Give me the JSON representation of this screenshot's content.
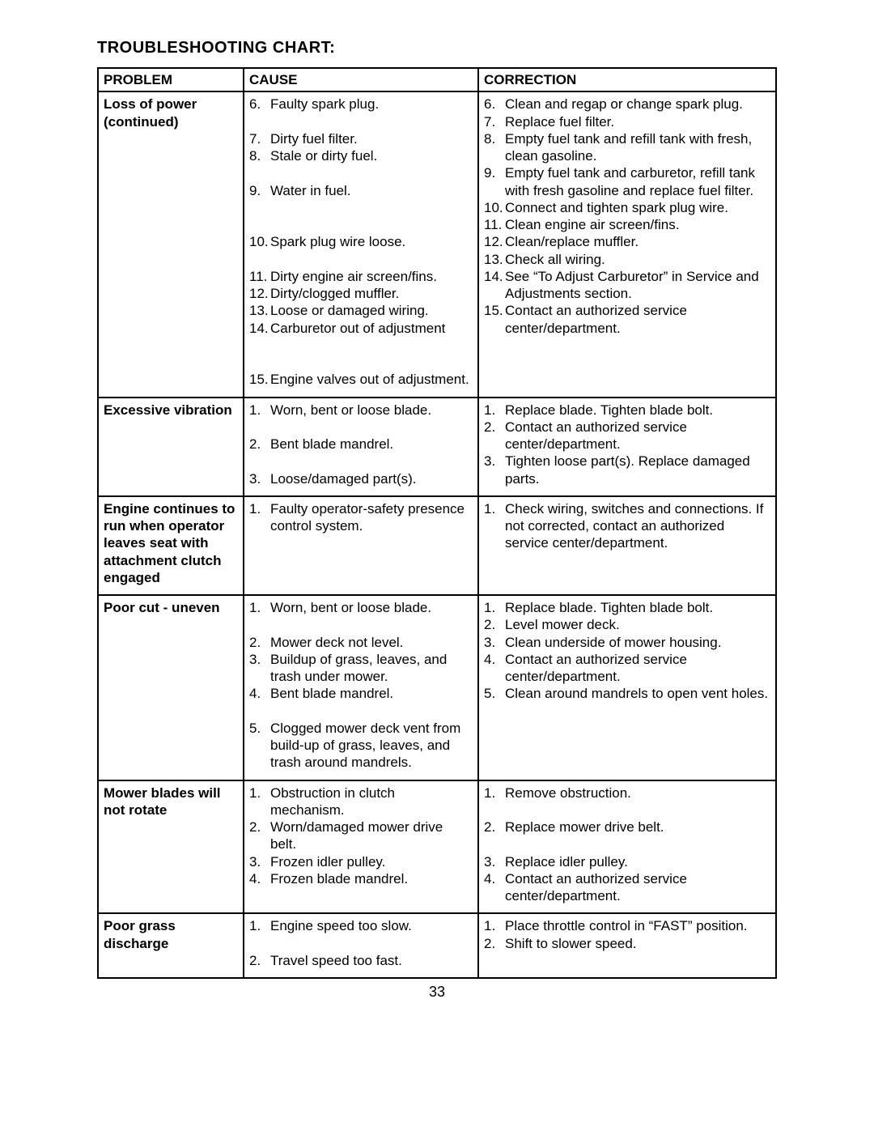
{
  "title": "TROUBLESHOOTING CHART:",
  "headers": {
    "problem": "PROBLEM",
    "cause": "CAUSE",
    "correction": "CORRECTION"
  },
  "page_number": "33",
  "rows": [
    {
      "problem": "Loss of power (continued)",
      "causes": [
        {
          "n": "6.",
          "t": "Faulty spark plug."
        },
        {
          "n": " ",
          "t": " "
        },
        {
          "n": "7.",
          "t": "Dirty fuel filter."
        },
        {
          "n": "8.",
          "t": "Stale or dirty fuel."
        },
        {
          "n": " ",
          "t": " "
        },
        {
          "n": "9.",
          "t": "Water in fuel."
        },
        {
          "n": " ",
          "t": " "
        },
        {
          "n": " ",
          "t": " "
        },
        {
          "n": "10.",
          "t": "Spark plug wire loose."
        },
        {
          "n": " ",
          "t": " "
        },
        {
          "n": "11.",
          "t": "Dirty engine air screen/fins."
        },
        {
          "n": "12.",
          "t": "Dirty/clogged muffler."
        },
        {
          "n": "13.",
          "t": "Loose or damaged wiring."
        },
        {
          "n": "14.",
          "t": "Carburetor out of adjustment"
        },
        {
          "n": " ",
          "t": " "
        },
        {
          "n": " ",
          "t": " "
        },
        {
          "n": "15.",
          "t": "Engine valves out of adjustment."
        }
      ],
      "corrections": [
        {
          "n": "6.",
          "t": "Clean and regap or change spark plug."
        },
        {
          "n": "7.",
          "t": "Replace fuel filter."
        },
        {
          "n": "8.",
          "t": "Empty fuel tank and refill tank with fresh, clean gasoline."
        },
        {
          "n": "9.",
          "t": "Empty fuel tank and carburetor, refill tank with fresh gasoline and replace fuel filter."
        },
        {
          "n": "10.",
          "t": "Connect and tighten spark plug wire."
        },
        {
          "n": "11.",
          "t": "Clean engine air screen/fins."
        },
        {
          "n": "12.",
          "t": "Clean/replace muffler."
        },
        {
          "n": "13.",
          "t": "Check all wiring."
        },
        {
          "n": "14.",
          "t": "See “To Adjust Carburetor” in Service and Adjustments section."
        },
        {
          "n": "15.",
          "t": "Contact an authorized service center/department."
        }
      ]
    },
    {
      "problem": "Excessive vibration",
      "causes": [
        {
          "n": "1.",
          "t": "Worn, bent or loose blade."
        },
        {
          "n": " ",
          "t": " "
        },
        {
          "n": "2.",
          "t": "Bent blade mandrel."
        },
        {
          "n": " ",
          "t": " "
        },
        {
          "n": "3.",
          "t": "Loose/damaged part(s)."
        }
      ],
      "corrections": [
        {
          "n": "1.",
          "t": "Replace blade. Tighten blade bolt."
        },
        {
          "n": "2.",
          "t": "Contact an authorized service center/department."
        },
        {
          "n": "3.",
          "t": "Tighten loose part(s). Replace damaged parts."
        }
      ]
    },
    {
      "problem": "Engine continues to run when operator leaves seat with attachment clutch engaged",
      "causes": [
        {
          "n": "1.",
          "t": "Faulty operator-safety presence control system."
        }
      ],
      "corrections": [
        {
          "n": "1.",
          "t": "Check wiring, switches and connections. If not corrected, contact an authorized service center/department."
        }
      ]
    },
    {
      "problem": "Poor cut - uneven",
      "causes": [
        {
          "n": "1.",
          "t": "Worn, bent or loose blade."
        },
        {
          "n": " ",
          "t": " "
        },
        {
          "n": "2.",
          "t": "Mower deck not level."
        },
        {
          "n": "3.",
          "t": "Buildup of grass, leaves, and trash under mower."
        },
        {
          "n": "4.",
          "t": "Bent blade mandrel."
        },
        {
          "n": " ",
          "t": " "
        },
        {
          "n": "5.",
          "t": "Clogged mower deck vent from build-up of grass, leaves, and trash around mandrels."
        }
      ],
      "corrections": [
        {
          "n": "1.",
          "t": "Replace blade. Tighten blade bolt."
        },
        {
          "n": "2.",
          "t": "Level mower deck."
        },
        {
          "n": "3.",
          "t": "Clean underside of mower housing."
        },
        {
          "n": "4.",
          "t": "Contact an authorized service center/department."
        },
        {
          "n": "5.",
          "t": "Clean around mandrels to open vent holes."
        }
      ]
    },
    {
      "problem": "Mower blades will not rotate",
      "causes": [
        {
          "n": "1.",
          "t": "Obstruction in clutch mechanism."
        },
        {
          "n": "2.",
          "t": "Worn/damaged mower drive belt."
        },
        {
          "n": "3.",
          "t": "Frozen idler pulley."
        },
        {
          "n": "4.",
          "t": "Frozen blade mandrel."
        }
      ],
      "corrections": [
        {
          "n": "1.",
          "t": "Remove obstruction."
        },
        {
          "n": " ",
          "t": " "
        },
        {
          "n": "2.",
          "t": "Replace mower drive belt."
        },
        {
          "n": " ",
          "t": " "
        },
        {
          "n": "3.",
          "t": "Replace idler pulley."
        },
        {
          "n": "4.",
          "t": "Contact an authorized service center/department."
        }
      ]
    },
    {
      "problem": "Poor grass discharge",
      "causes": [
        {
          "n": "1.",
          "t": "Engine speed too slow."
        },
        {
          "n": " ",
          "t": " "
        },
        {
          "n": "2.",
          "t": "Travel speed too fast."
        }
      ],
      "corrections": [
        {
          "n": "1.",
          "t": "Place throttle control in “FAST” position."
        },
        {
          "n": "2.",
          "t": "Shift to slower speed."
        }
      ]
    }
  ]
}
